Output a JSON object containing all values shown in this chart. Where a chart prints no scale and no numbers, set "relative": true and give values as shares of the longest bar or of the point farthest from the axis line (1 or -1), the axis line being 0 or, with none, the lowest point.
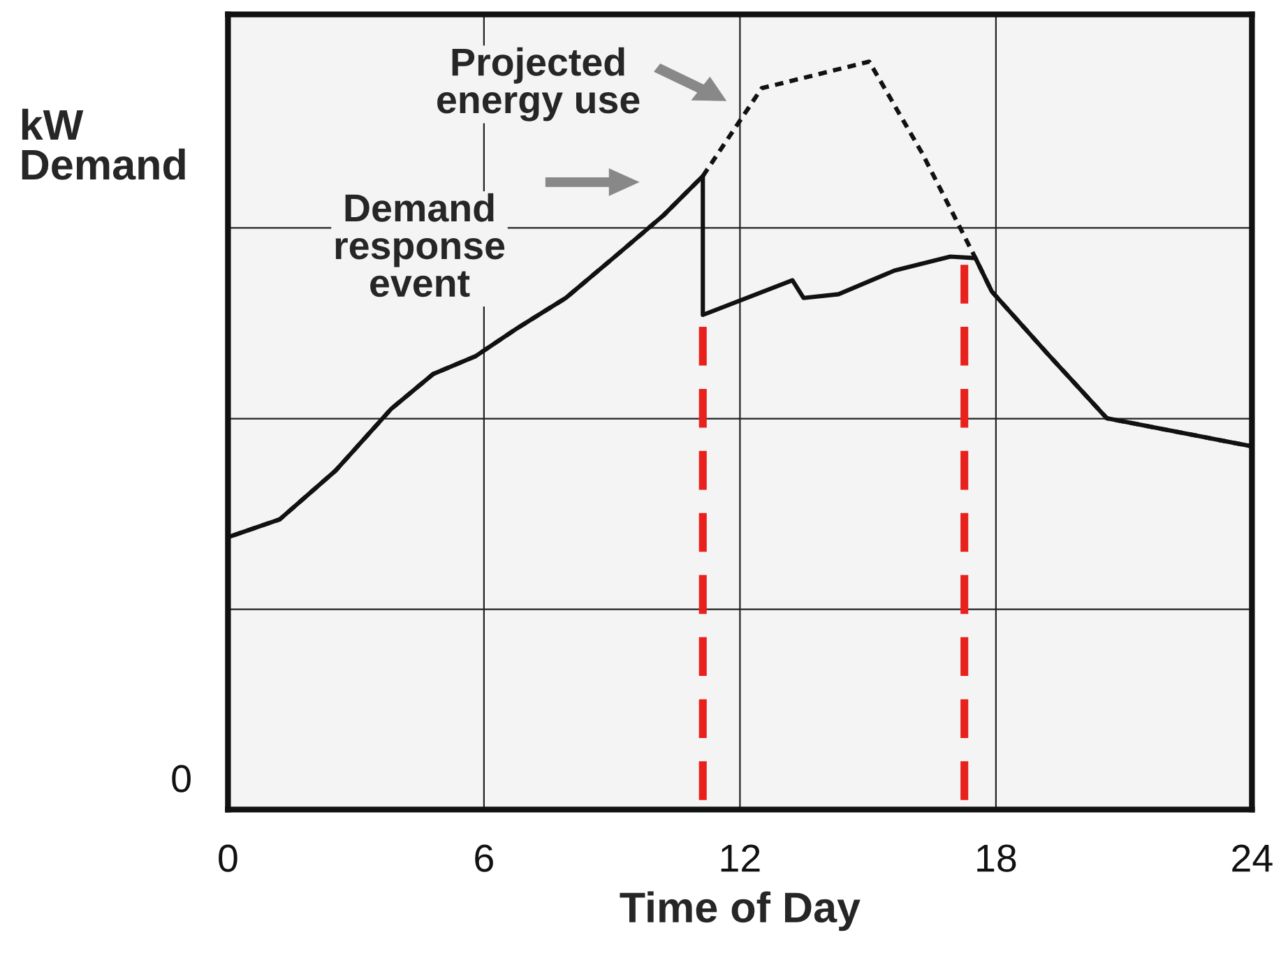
{
  "chart_data": {
    "type": "line",
    "relative": true,
    "xlabel": "Time of Day",
    "ylabel": "kW\nDemand",
    "xlim": [
      0,
      24
    ],
    "xticks": [
      0,
      6,
      12,
      18,
      24
    ],
    "grid": true,
    "series": [
      {
        "color": "#111111",
        "line_style": "dotted",
        "x": [
          0,
          0,
          1.21,
          2.52,
          3.83,
          4.81,
          5.8,
          6.78,
          7.92,
          9.07,
          10.21,
          11.13,
          12.51,
          15.03,
          16.27,
          17.09,
          17.52,
          17.9,
          19.2,
          20.6,
          24,
          24
        ],
        "values": [
          0,
          0.356,
          0.38,
          0.446,
          0.53,
          0.577,
          0.601,
          0.639,
          0.68,
          0.736,
          0.792,
          0.845,
          0.964,
          1.0,
          0.876,
          0.783,
          0.734,
          0.689,
          0.605,
          0.517,
          0.479,
          0
        ]
      },
      {
        "color": "#111111",
        "line_style": "solid",
        "x": [
          0,
          0,
          1.21,
          2.52,
          3.83,
          4.81,
          5.8,
          6.78,
          7.92,
          9.07,
          10.21,
          11.13,
          11.13,
          13.23,
          13.49,
          14.31,
          15.62,
          16.93,
          17.52,
          17.9,
          19.2,
          20.6,
          24,
          24
        ],
        "values": [
          0,
          0.356,
          0.38,
          0.446,
          0.53,
          0.577,
          0.601,
          0.639,
          0.68,
          0.736,
          0.792,
          0.845,
          0.657,
          0.704,
          0.68,
          0.685,
          0.717,
          0.736,
          0.734,
          0.689,
          0.605,
          0.517,
          0.479,
          0
        ]
      }
    ],
    "ref_lines": [
      {
        "axis": "x",
        "value": 11.13,
        "color": "#e8211c",
        "line_style": "dashed"
      },
      {
        "axis": "x",
        "value": 17.26,
        "color": "#e8211c",
        "line_style": "dashed"
      }
    ],
    "annotations": [
      "0",
      "Projected\nenergy use",
      "Demand\nresponse\nevent"
    ]
  }
}
